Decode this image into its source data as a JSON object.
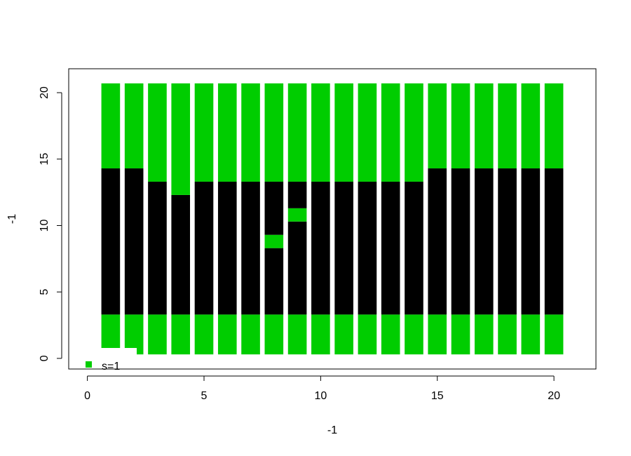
{
  "chart_data": {
    "type": "bar",
    "xlabel": "-1",
    "ylabel": "-1",
    "xlim": [
      -0.8,
      21.8
    ],
    "ylim": [
      -0.8,
      21.8
    ],
    "x_ticks": [
      0,
      5,
      10,
      15,
      20
    ],
    "y_ticks": [
      0,
      5,
      10,
      15,
      20
    ],
    "bar_half_width": 0.4,
    "colors": {
      "green": "#00cd00",
      "black": "#000000"
    },
    "legend": {
      "position": "bottom-left",
      "label": "s=1",
      "color": "#00cd00"
    },
    "columns": [
      {
        "x": 1,
        "segments": [
          [
            0.3,
            3.3,
            "green"
          ],
          [
            3.3,
            14.3,
            "black"
          ],
          [
            14.3,
            20.7,
            "green"
          ]
        ]
      },
      {
        "x": 2,
        "segments": [
          [
            0.3,
            3.3,
            "green"
          ],
          [
            3.3,
            14.3,
            "black"
          ],
          [
            14.3,
            20.7,
            "green"
          ]
        ]
      },
      {
        "x": 3,
        "segments": [
          [
            0.3,
            3.3,
            "green"
          ],
          [
            3.3,
            13.3,
            "black"
          ],
          [
            13.3,
            20.7,
            "green"
          ]
        ]
      },
      {
        "x": 4,
        "segments": [
          [
            0.3,
            3.3,
            "green"
          ],
          [
            3.3,
            12.3,
            "black"
          ],
          [
            12.3,
            20.7,
            "green"
          ]
        ]
      },
      {
        "x": 5,
        "segments": [
          [
            0.3,
            3.3,
            "green"
          ],
          [
            3.3,
            13.3,
            "black"
          ],
          [
            13.3,
            20.7,
            "green"
          ]
        ]
      },
      {
        "x": 6,
        "segments": [
          [
            0.3,
            3.3,
            "green"
          ],
          [
            3.3,
            13.3,
            "black"
          ],
          [
            13.3,
            20.7,
            "green"
          ]
        ]
      },
      {
        "x": 7,
        "segments": [
          [
            0.3,
            3.3,
            "green"
          ],
          [
            3.3,
            13.3,
            "black"
          ],
          [
            13.3,
            20.7,
            "green"
          ]
        ]
      },
      {
        "x": 8,
        "segments": [
          [
            0.3,
            3.3,
            "green"
          ],
          [
            3.3,
            8.3,
            "black"
          ],
          [
            8.3,
            9.3,
            "green"
          ],
          [
            9.3,
            13.3,
            "black"
          ],
          [
            13.3,
            20.7,
            "green"
          ]
        ]
      },
      {
        "x": 9,
        "segments": [
          [
            0.3,
            3.3,
            "green"
          ],
          [
            3.3,
            10.3,
            "black"
          ],
          [
            10.3,
            11.3,
            "green"
          ],
          [
            11.3,
            13.3,
            "black"
          ],
          [
            13.3,
            20.7,
            "green"
          ]
        ]
      },
      {
        "x": 10,
        "segments": [
          [
            0.3,
            3.3,
            "green"
          ],
          [
            3.3,
            13.3,
            "black"
          ],
          [
            13.3,
            20.7,
            "green"
          ]
        ]
      },
      {
        "x": 11,
        "segments": [
          [
            0.3,
            3.3,
            "green"
          ],
          [
            3.3,
            13.3,
            "black"
          ],
          [
            13.3,
            20.7,
            "green"
          ]
        ]
      },
      {
        "x": 12,
        "segments": [
          [
            0.3,
            3.3,
            "green"
          ],
          [
            3.3,
            13.3,
            "black"
          ],
          [
            13.3,
            20.7,
            "green"
          ]
        ]
      },
      {
        "x": 13,
        "segments": [
          [
            0.3,
            3.3,
            "green"
          ],
          [
            3.3,
            13.3,
            "black"
          ],
          [
            13.3,
            20.7,
            "green"
          ]
        ]
      },
      {
        "x": 14,
        "segments": [
          [
            0.3,
            3.3,
            "green"
          ],
          [
            3.3,
            13.3,
            "black"
          ],
          [
            13.3,
            20.7,
            "green"
          ]
        ]
      },
      {
        "x": 15,
        "segments": [
          [
            0.3,
            3.3,
            "green"
          ],
          [
            3.3,
            14.3,
            "black"
          ],
          [
            14.3,
            20.7,
            "green"
          ]
        ]
      },
      {
        "x": 16,
        "segments": [
          [
            0.3,
            3.3,
            "green"
          ],
          [
            3.3,
            14.3,
            "black"
          ],
          [
            14.3,
            20.7,
            "green"
          ]
        ]
      },
      {
        "x": 17,
        "segments": [
          [
            0.3,
            3.3,
            "green"
          ],
          [
            3.3,
            14.3,
            "black"
          ],
          [
            14.3,
            20.7,
            "green"
          ]
        ]
      },
      {
        "x": 18,
        "segments": [
          [
            0.3,
            3.3,
            "green"
          ],
          [
            3.3,
            14.3,
            "black"
          ],
          [
            14.3,
            20.7,
            "green"
          ]
        ]
      },
      {
        "x": 19,
        "segments": [
          [
            0.3,
            3.3,
            "green"
          ],
          [
            3.3,
            14.3,
            "black"
          ],
          [
            14.3,
            20.7,
            "green"
          ]
        ]
      },
      {
        "x": 20,
        "segments": [
          [
            0.3,
            3.3,
            "green"
          ],
          [
            3.3,
            14.3,
            "black"
          ],
          [
            14.3,
            20.7,
            "green"
          ]
        ]
      }
    ]
  }
}
